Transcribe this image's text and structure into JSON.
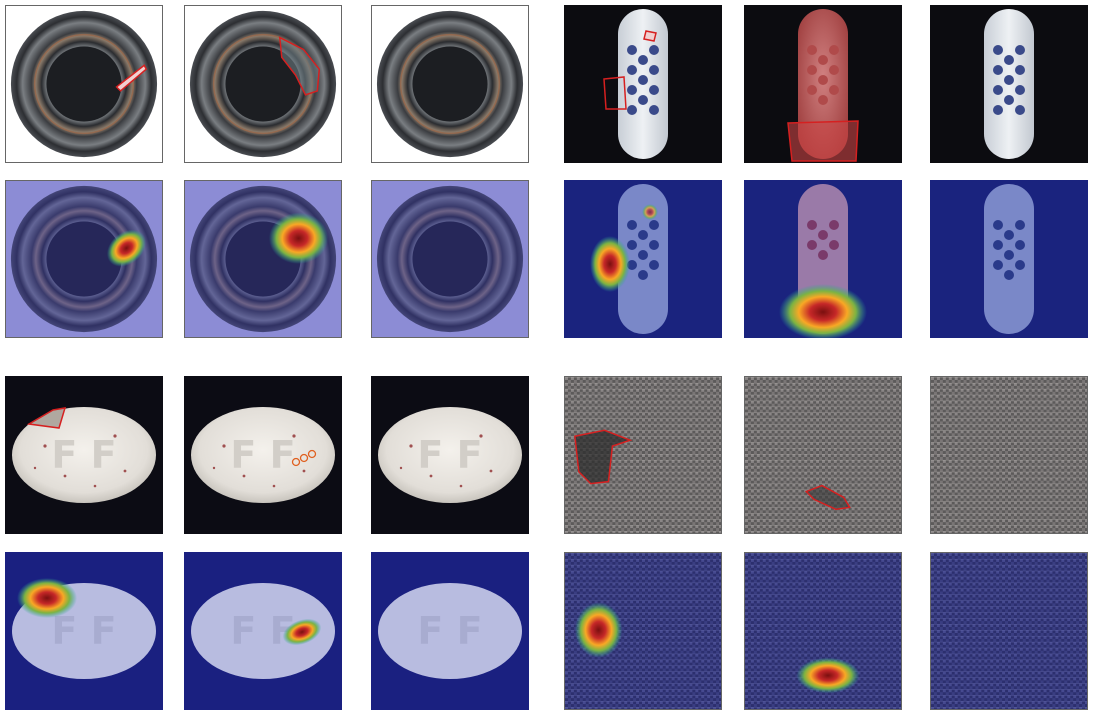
{
  "figure": {
    "layout": "2x2 groups, each with 3 columns x 2 rows (top row: defect-contour images, bottom row: anomaly heatmap overlays)",
    "groups": [
      {
        "object": "bottle",
        "columns": [
          "defect-1",
          "defect-2",
          "good"
        ],
        "rows": [
          "image-with-contour",
          "heatmap-overlay"
        ]
      },
      {
        "object": "toothbrush",
        "columns": [
          "defect-1",
          "defect-2",
          "good"
        ],
        "rows": [
          "image-with-contour",
          "heatmap-overlay"
        ]
      },
      {
        "object": "pill",
        "columns": [
          "defect-1",
          "defect-2",
          "good"
        ],
        "rows": [
          "image-with-contour",
          "heatmap-overlay"
        ]
      },
      {
        "object": "carpet",
        "columns": [
          "defect-1",
          "defect-2",
          "good"
        ],
        "rows": [
          "image-with-contour",
          "heatmap-overlay"
        ]
      }
    ],
    "colors": {
      "contour": "#d62020",
      "heat_cold": "#1a237e",
      "heat_hot": "#8b1a1a",
      "background_dark": "#0c0c10"
    },
    "pill_text": "F F"
  }
}
